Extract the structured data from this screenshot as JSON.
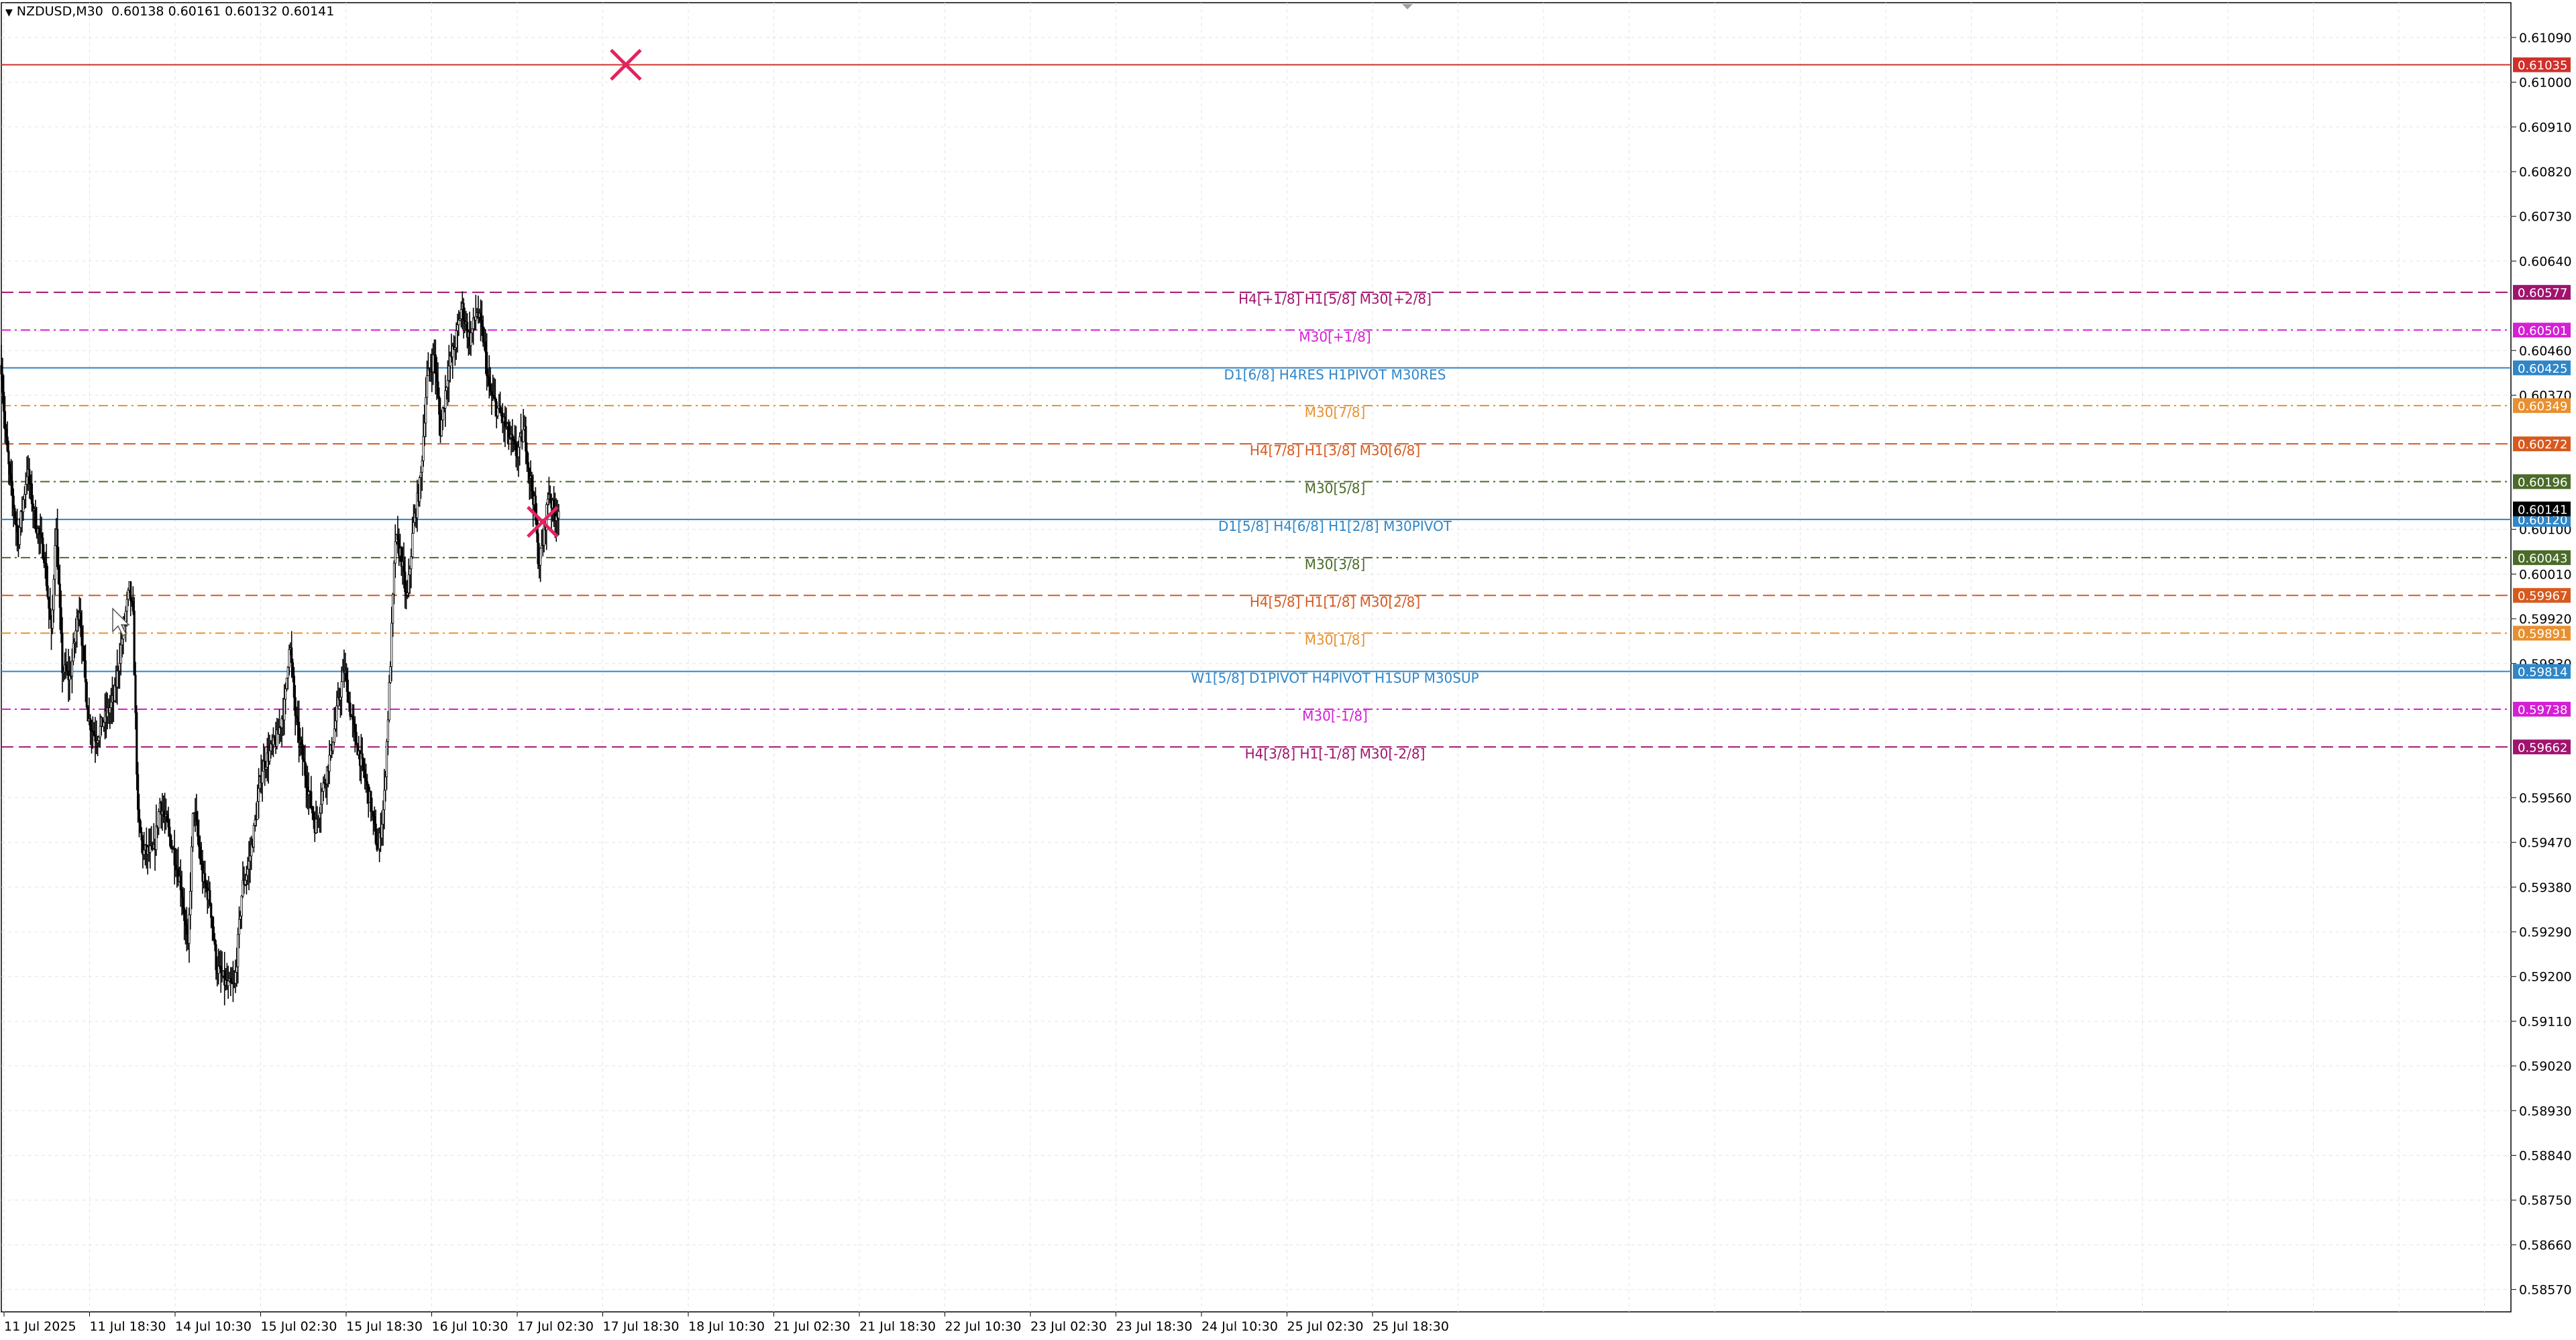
{
  "header": {
    "symbol": "NZDUSD,M30",
    "ohlc": "0.60138 0.60161 0.60132 0.60141"
  },
  "chart_data": {
    "type": "candlestick",
    "symbol": "NZDUSD",
    "timeframe": "M30",
    "ylim": [
      0.58525,
      0.6116
    ],
    "grid": true,
    "y_ticks": [
      "0.61090",
      "0.61000",
      "0.60910",
      "0.60820",
      "0.60730",
      "0.60640",
      "0.60460",
      "0.60370",
      "0.60100",
      "0.60010",
      "0.59920",
      "0.59830",
      "0.59560",
      "0.59470",
      "0.59380",
      "0.59290",
      "0.59200",
      "0.59110",
      "0.59020",
      "0.58930",
      "0.58840",
      "0.58750",
      "0.58660",
      "0.58570"
    ],
    "x_ticks": [
      "11 Jul 2025",
      "11 Jul 18:30",
      "14 Jul 10:30",
      "15 Jul 02:30",
      "15 Jul 18:30",
      "16 Jul 10:30",
      "17 Jul 02:30",
      "17 Jul 18:30",
      "18 Jul 10:30",
      "21 Jul 02:30",
      "21 Jul 18:30",
      "22 Jul 10:30",
      "23 Jul 02:30",
      "23 Jul 18:30",
      "24 Jul 10:30",
      "25 Jul 02:30",
      "25 Jul 18:30"
    ],
    "levels": [
      {
        "price": 0.61035,
        "label": "",
        "value_text": "0.61035",
        "color": "#d0302a",
        "dash": "solid"
      },
      {
        "price": 0.60577,
        "label": "H4[+1/8] H1[5/8] M30[+2/8]",
        "value_text": "0.60577",
        "color": "#a0146e",
        "dash": "long"
      },
      {
        "price": 0.60501,
        "label": "M30[+1/8]",
        "value_text": "0.60501",
        "color": "#d41fd4",
        "dash": "dashdot"
      },
      {
        "price": 0.60425,
        "label": "D1[6/8] H4RES H1PIVOT M30RES",
        "value_text": "0.60425",
        "color": "#2f86c8",
        "dash": "solid"
      },
      {
        "price": 0.60349,
        "label": "M30[7/8]",
        "value_text": "0.60349",
        "color": "#e89030",
        "dash": "dashdot"
      },
      {
        "price": 0.60272,
        "label": "H4[7/8] H1[3/8] M30[6/8]",
        "value_text": "0.60272",
        "color": "#d65a20",
        "dash": "long"
      },
      {
        "price": 0.60196,
        "label": "M30[5/8]",
        "value_text": "0.60196",
        "color": "#4b6b2a",
        "dash": "dashdot"
      },
      {
        "price": 0.6012,
        "label": "D1[5/8] H4[6/8] H1[2/8] M30PIVOT",
        "value_text": "0.60120",
        "color": "#2f86c8",
        "dash": "solid"
      },
      {
        "price": 0.60043,
        "label": "M30[3/8]",
        "value_text": "0.60043",
        "color": "#4b6b2a",
        "dash": "dashdot"
      },
      {
        "price": 0.59967,
        "label": "H4[5/8] H1[1/8] M30[2/8]",
        "value_text": "0.59967",
        "color": "#d65a20",
        "dash": "long"
      },
      {
        "price": 0.59891,
        "label": "M30[1/8]",
        "value_text": "0.59891",
        "color": "#e89030",
        "dash": "dashdot"
      },
      {
        "price": 0.59814,
        "label": "W1[5/8] D1PIVOT H4PIVOT H1SUP M30SUP",
        "value_text": "0.59814",
        "color": "#2f86c8",
        "dash": "solid"
      },
      {
        "price": 0.59738,
        "label": "M30[-1/8]",
        "value_text": "0.59738",
        "color": "#d41fd4",
        "dash": "dashdot"
      },
      {
        "price": 0.59662,
        "label": "H4[3/8] H1[-1/8] M30[-2/8]",
        "value_text": "0.59662",
        "color": "#a0146e",
        "dash": "long"
      }
    ],
    "current_price": {
      "price": 0.60141,
      "text": "0.60141",
      "color": "#000000"
    },
    "markers": [
      {
        "type": "cross",
        "price": 0.61035,
        "bar": 2048,
        "color": "#e0245e"
      },
      {
        "type": "cross",
        "price": 0.60115,
        "bar": 1775,
        "color": "#e0245e"
      }
    ],
    "series": [
      {
        "bars_per_pixel": 2.2,
        "path": [
          [
            0,
            0.6043
          ],
          [
            12,
            0.603
          ],
          [
            28,
            0.602
          ],
          [
            55,
            0.6008
          ],
          [
            85,
            0.6022
          ],
          [
            110,
            0.6012
          ],
          [
            140,
            0.6005
          ],
          [
            165,
            0.5988
          ],
          [
            178,
            0.6012
          ],
          [
            200,
            0.5982
          ],
          [
            225,
            0.598
          ],
          [
            255,
            0.5995
          ],
          [
            285,
            0.5972
          ],
          [
            310,
            0.5968
          ],
          [
            340,
            0.5972
          ],
          [
            370,
            0.5976
          ],
          [
            400,
            0.599
          ],
          [
            420,
            0.5998
          ],
          [
            432,
            0.5992
          ],
          [
            448,
            0.5952
          ],
          [
            465,
            0.5945
          ],
          [
            500,
            0.5945
          ],
          [
            520,
            0.5955
          ],
          [
            545,
            0.595
          ],
          [
            565,
            0.5945
          ],
          [
            590,
            0.5938
          ],
          [
            612,
            0.5925
          ],
          [
            630,
            0.5955
          ],
          [
            660,
            0.594
          ],
          [
            685,
            0.5935
          ],
          [
            705,
            0.5922
          ],
          [
            740,
            0.5918
          ],
          [
            765,
            0.5918
          ],
          [
            790,
            0.5938
          ],
          [
            810,
            0.5942
          ],
          [
            830,
            0.595
          ],
          [
            855,
            0.5962
          ],
          [
            880,
            0.5965
          ],
          [
            905,
            0.5968
          ],
          [
            930,
            0.5975
          ],
          [
            945,
            0.5988
          ],
          [
            965,
            0.5972
          ],
          [
            985,
            0.5965
          ],
          [
            1005,
            0.5958
          ],
          [
            1030,
            0.595
          ],
          [
            1055,
            0.5958
          ],
          [
            1080,
            0.5965
          ],
          [
            1105,
            0.5975
          ],
          [
            1125,
            0.5982
          ],
          [
            1140,
            0.5975
          ],
          [
            1160,
            0.5968
          ],
          [
            1185,
            0.5962
          ],
          [
            1210,
            0.5955
          ],
          [
            1235,
            0.5945
          ],
          [
            1255,
            0.5955
          ],
          [
            1275,
            0.5982
          ],
          [
            1292,
            0.6008
          ],
          [
            1310,
            0.6005
          ],
          [
            1330,
            0.5995
          ],
          [
            1350,
            0.601
          ],
          [
            1375,
            0.602
          ],
          [
            1395,
            0.604
          ],
          [
            1420,
            0.6045
          ],
          [
            1440,
            0.603
          ],
          [
            1465,
            0.6042
          ],
          [
            1490,
            0.6048
          ],
          [
            1510,
            0.6055
          ],
          [
            1535,
            0.6048
          ],
          [
            1560,
            0.6054
          ],
          [
            1582,
            0.6048
          ],
          [
            1600,
            0.6038
          ],
          [
            1620,
            0.6035
          ],
          [
            1645,
            0.6032
          ],
          [
            1670,
            0.6028
          ],
          [
            1690,
            0.6025
          ],
          [
            1715,
            0.603
          ],
          [
            1730,
            0.6022
          ],
          [
            1748,
            0.6015
          ],
          [
            1762,
            0.6003
          ],
          [
            1778,
            0.6008
          ],
          [
            1795,
            0.6018
          ],
          [
            1812,
            0.6013
          ],
          [
            1830,
            0.6014
          ]
        ]
      }
    ]
  }
}
